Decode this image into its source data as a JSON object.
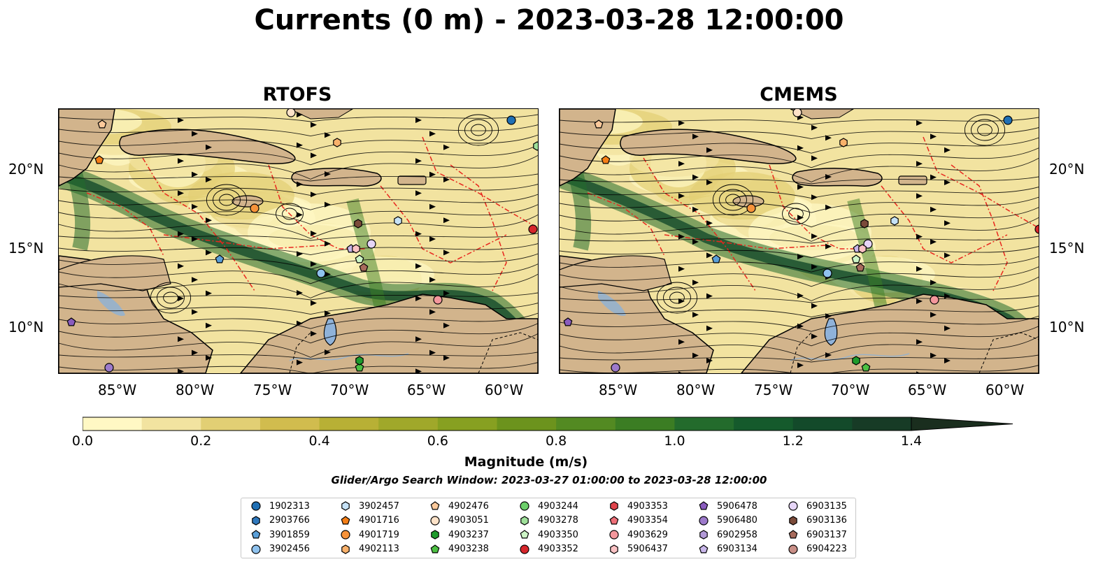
{
  "title": "Currents (0 m) - 2023-03-28 12:00:00",
  "panels": [
    {
      "title": "RTOFS"
    },
    {
      "title": "CMEMS"
    }
  ],
  "axes": {
    "lat_ticks": [
      "10°N",
      "15°N",
      "20°N"
    ],
    "lon_ticks": [
      "85°W",
      "80°W",
      "75°W",
      "70°W",
      "65°W",
      "60°W"
    ]
  },
  "colorbar": {
    "label": "Magnitude (m/s)",
    "ticks": [
      "0.0",
      "0.2",
      "0.4",
      "0.6",
      "0.8",
      "1.0",
      "1.2",
      "1.4"
    ],
    "range": [
      0,
      1.5
    ],
    "extend": "max",
    "colors": [
      "#fff8c4",
      "#f2e3a0",
      "#e2cf74",
      "#d1bc4e",
      "#b8b035",
      "#a0a82a",
      "#87a021",
      "#6c931d",
      "#538a22",
      "#3b7d23",
      "#236b2c",
      "#155a2c",
      "#134a2a",
      "#173b26",
      "#1a2e1e"
    ]
  },
  "search_window": "Glider/Argo Search Window: 2023-03-27 01:00:00 to 2023-03-28 12:00:00",
  "legend": [
    {
      "id": "1902313",
      "marker": "circle",
      "color": "#1f6fb4"
    },
    {
      "id": "2903766",
      "marker": "hexagon",
      "color": "#2f78bd"
    },
    {
      "id": "3901859",
      "marker": "pentagon",
      "color": "#5a9fd8"
    },
    {
      "id": "3902456",
      "marker": "circle",
      "color": "#8fc2ee"
    },
    {
      "id": "3902457",
      "marker": "hexagon",
      "color": "#c6e2f7"
    },
    {
      "id": "4901716",
      "marker": "pentagon",
      "color": "#f47e16"
    },
    {
      "id": "4901719",
      "marker": "circle",
      "color": "#f7933a"
    },
    {
      "id": "4902113",
      "marker": "hexagon",
      "color": "#f9b16b"
    },
    {
      "id": "4902476",
      "marker": "pentagon",
      "color": "#fbc99b"
    },
    {
      "id": "4903051",
      "marker": "circle",
      "color": "#fde2c8"
    },
    {
      "id": "4903237",
      "marker": "hexagon",
      "color": "#1e9b2c"
    },
    {
      "id": "4903238",
      "marker": "pentagon",
      "color": "#4cc043"
    },
    {
      "id": "4903244",
      "marker": "circle",
      "color": "#6ccf6a"
    },
    {
      "id": "4903278",
      "marker": "hexagon",
      "color": "#9fe09a"
    },
    {
      "id": "4903350",
      "marker": "pentagon",
      "color": "#cdf5c6"
    },
    {
      "id": "4903352",
      "marker": "circle",
      "color": "#d6262b"
    },
    {
      "id": "4903353",
      "marker": "hexagon",
      "color": "#e0444c"
    },
    {
      "id": "4903354",
      "marker": "pentagon",
      "color": "#ee6f78"
    },
    {
      "id": "4903629",
      "marker": "circle",
      "color": "#f4979c"
    },
    {
      "id": "5906437",
      "marker": "hexagon",
      "color": "#fac2c4"
    },
    {
      "id": "5906478",
      "marker": "pentagon",
      "color": "#8a5cbe"
    },
    {
      "id": "5906480",
      "marker": "circle",
      "color": "#9d7acb"
    },
    {
      "id": "6902958",
      "marker": "hexagon",
      "color": "#b39ad8"
    },
    {
      "id": "6903134",
      "marker": "pentagon",
      "color": "#c9b7ea"
    },
    {
      "id": "6903135",
      "marker": "circle",
      "color": "#e6d5f7"
    },
    {
      "id": "6903136",
      "marker": "hexagon",
      "color": "#7b4b3a"
    },
    {
      "id": "6903137",
      "marker": "pentagon",
      "color": "#a86b5c"
    },
    {
      "id": "6904223",
      "marker": "circle",
      "color": "#c98f87"
    }
  ]
}
